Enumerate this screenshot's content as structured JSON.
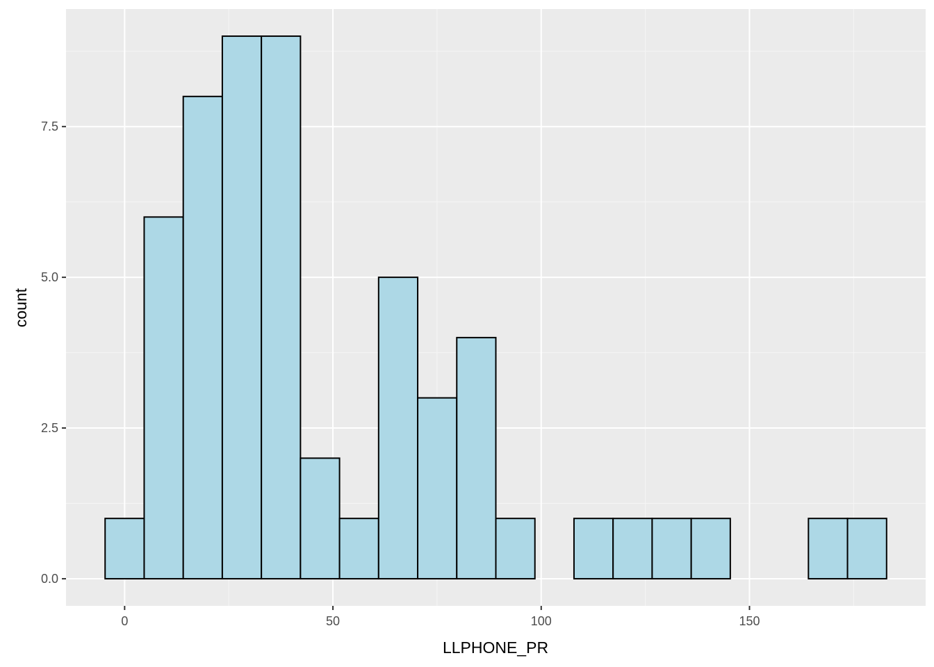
{
  "chart_data": {
    "type": "bar",
    "title": "",
    "xlabel": "LLPHONE_PR",
    "ylabel": "count",
    "bin_width": 9.38,
    "bins": [
      {
        "x_start": -4.69,
        "x_end": 4.69,
        "count": 1
      },
      {
        "x_start": 4.69,
        "x_end": 14.07,
        "count": 6
      },
      {
        "x_start": 14.07,
        "x_end": 23.45,
        "count": 8
      },
      {
        "x_start": 23.45,
        "x_end": 32.83,
        "count": 9
      },
      {
        "x_start": 32.83,
        "x_end": 42.21,
        "count": 9
      },
      {
        "x_start": 42.21,
        "x_end": 51.59,
        "count": 2
      },
      {
        "x_start": 51.59,
        "x_end": 60.97,
        "count": 1
      },
      {
        "x_start": 60.97,
        "x_end": 70.35,
        "count": 5
      },
      {
        "x_start": 70.35,
        "x_end": 79.73,
        "count": 3
      },
      {
        "x_start": 79.73,
        "x_end": 89.11,
        "count": 4
      },
      {
        "x_start": 89.11,
        "x_end": 98.49,
        "count": 1
      },
      {
        "x_start": 98.49,
        "x_end": 107.87,
        "count": 0
      },
      {
        "x_start": 107.87,
        "x_end": 117.25,
        "count": 1
      },
      {
        "x_start": 117.25,
        "x_end": 126.63,
        "count": 1
      },
      {
        "x_start": 126.63,
        "x_end": 136.01,
        "count": 1
      },
      {
        "x_start": 136.01,
        "x_end": 145.39,
        "count": 1
      },
      {
        "x_start": 145.39,
        "x_end": 154.77,
        "count": 0
      },
      {
        "x_start": 154.77,
        "x_end": 164.15,
        "count": 0
      },
      {
        "x_start": 164.15,
        "x_end": 173.53,
        "count": 1
      },
      {
        "x_start": 173.53,
        "x_end": 182.91,
        "count": 1
      }
    ],
    "xlim": [
      -14.07,
      192.29
    ],
    "ylim": [
      -0.45,
      9.45
    ],
    "x_ticks": [
      0,
      50,
      100,
      150
    ],
    "x_tick_labels": [
      "0",
      "50",
      "100",
      "150"
    ],
    "y_ticks": [
      0,
      2.5,
      5,
      7.5
    ],
    "y_tick_labels": [
      "0.0",
      "2.5",
      "5.0",
      "7.5"
    ],
    "grid": true,
    "colors": {
      "panel_background": "#ebebeb",
      "grid_major": "#ffffff",
      "grid_minor": "#f5f5f5",
      "bar_fill": "#add8e6",
      "bar_outline": "#000000",
      "tick_text": "#4d4d4d",
      "tick_mark": "#333333"
    }
  }
}
